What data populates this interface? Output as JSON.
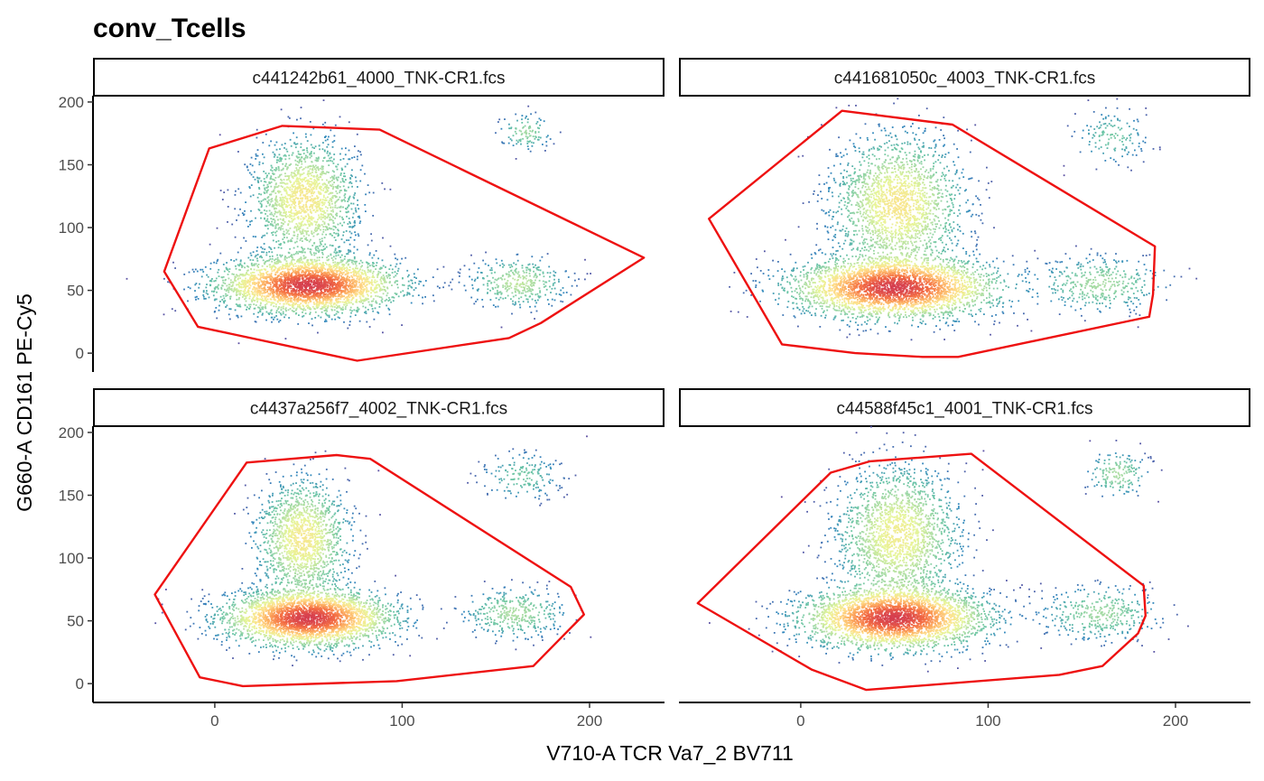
{
  "chart_data": {
    "type": "scatter",
    "subtype": "faceted density scatter with gate polygons",
    "title": "conv_Tcells",
    "xlabel": "V710-A TCR Va7_2 BV711",
    "ylabel": "G660-A CD161 PE-Cy5",
    "xlim": [
      -65,
      240
    ],
    "ylim": [
      -15,
      205
    ],
    "x_ticks": [
      0,
      100,
      200
    ],
    "y_ticks": [
      0,
      50,
      100,
      150,
      200
    ],
    "grid": false,
    "legend": "none",
    "colors": {
      "gate": "#ee1111",
      "density_low": "#5e4fa2",
      "density_mid": "#66c2a5",
      "density_high": "#fee08b",
      "density_peak": "#d53e4f"
    },
    "panels": [
      {
        "label": "c441242b61_4000_TNK-CR1.fcs",
        "gate": [
          [
            -3,
            163
          ],
          [
            36,
            181
          ],
          [
            88,
            178
          ],
          [
            229,
            76
          ],
          [
            174,
            24
          ],
          [
            157,
            12
          ],
          [
            76,
            -6
          ],
          [
            -9,
            21
          ],
          [
            -27,
            65
          ]
        ],
        "populations": [
          {
            "cx": 50,
            "cy": 54,
            "sx": 24,
            "sy": 11,
            "n": 3200
          },
          {
            "cx": 48,
            "cy": 122,
            "sx": 14,
            "sy": 24,
            "n": 1700
          },
          {
            "cx": 162,
            "cy": 56,
            "sx": 13,
            "sy": 10,
            "n": 380
          },
          {
            "cx": 166,
            "cy": 176,
            "sx": 7,
            "sy": 7,
            "n": 110
          }
        ]
      },
      {
        "label": "c441681050c_4003_TNK-CR1.fcs",
        "gate": [
          [
            22,
            193
          ],
          [
            81,
            182
          ],
          [
            189,
            85
          ],
          [
            188,
            47
          ],
          [
            186,
            29
          ],
          [
            84,
            -3
          ],
          [
            65,
            -3
          ],
          [
            29,
            0
          ],
          [
            -10,
            7
          ],
          [
            -49,
            107
          ]
        ],
        "populations": [
          {
            "cx": 50,
            "cy": 52,
            "sx": 27,
            "sy": 12,
            "n": 3300
          },
          {
            "cx": 52,
            "cy": 118,
            "sx": 17,
            "sy": 27,
            "n": 2000
          },
          {
            "cx": 160,
            "cy": 55,
            "sx": 17,
            "sy": 11,
            "n": 380
          },
          {
            "cx": 166,
            "cy": 172,
            "sx": 10,
            "sy": 11,
            "n": 140
          }
        ]
      },
      {
        "label": "c4437a256f7_4002_TNK-CR1.fcs",
        "gate": [
          [
            17,
            176
          ],
          [
            65,
            182
          ],
          [
            83,
            179
          ],
          [
            190,
            77
          ],
          [
            197,
            55
          ],
          [
            170,
            14
          ],
          [
            97,
            2
          ],
          [
            15,
            -2
          ],
          [
            -8,
            5
          ],
          [
            -32,
            71
          ]
        ],
        "populations": [
          {
            "cx": 50,
            "cy": 52,
            "sx": 22,
            "sy": 11,
            "n": 3200
          },
          {
            "cx": 47,
            "cy": 115,
            "sx": 12,
            "sy": 23,
            "n": 1500
          },
          {
            "cx": 160,
            "cy": 56,
            "sx": 14,
            "sy": 10,
            "n": 380
          },
          {
            "cx": 164,
            "cy": 165,
            "sx": 11,
            "sy": 10,
            "n": 180
          }
        ]
      },
      {
        "label": "c44588f45c1_4001_TNK-CR1.fcs",
        "gate": [
          [
            16,
            168
          ],
          [
            37,
            177
          ],
          [
            91,
            183
          ],
          [
            183,
            78
          ],
          [
            184,
            54
          ],
          [
            180,
            40
          ],
          [
            161,
            14
          ],
          [
            138,
            7
          ],
          [
            35,
            -5
          ],
          [
            6,
            11
          ],
          [
            -55,
            64
          ]
        ],
        "populations": [
          {
            "cx": 50,
            "cy": 52,
            "sx": 24,
            "sy": 12,
            "n": 3300
          },
          {
            "cx": 52,
            "cy": 118,
            "sx": 16,
            "sy": 27,
            "n": 1900
          },
          {
            "cx": 160,
            "cy": 56,
            "sx": 16,
            "sy": 11,
            "n": 380
          },
          {
            "cx": 169,
            "cy": 167,
            "sx": 8,
            "sy": 9,
            "n": 170
          }
        ]
      }
    ]
  }
}
